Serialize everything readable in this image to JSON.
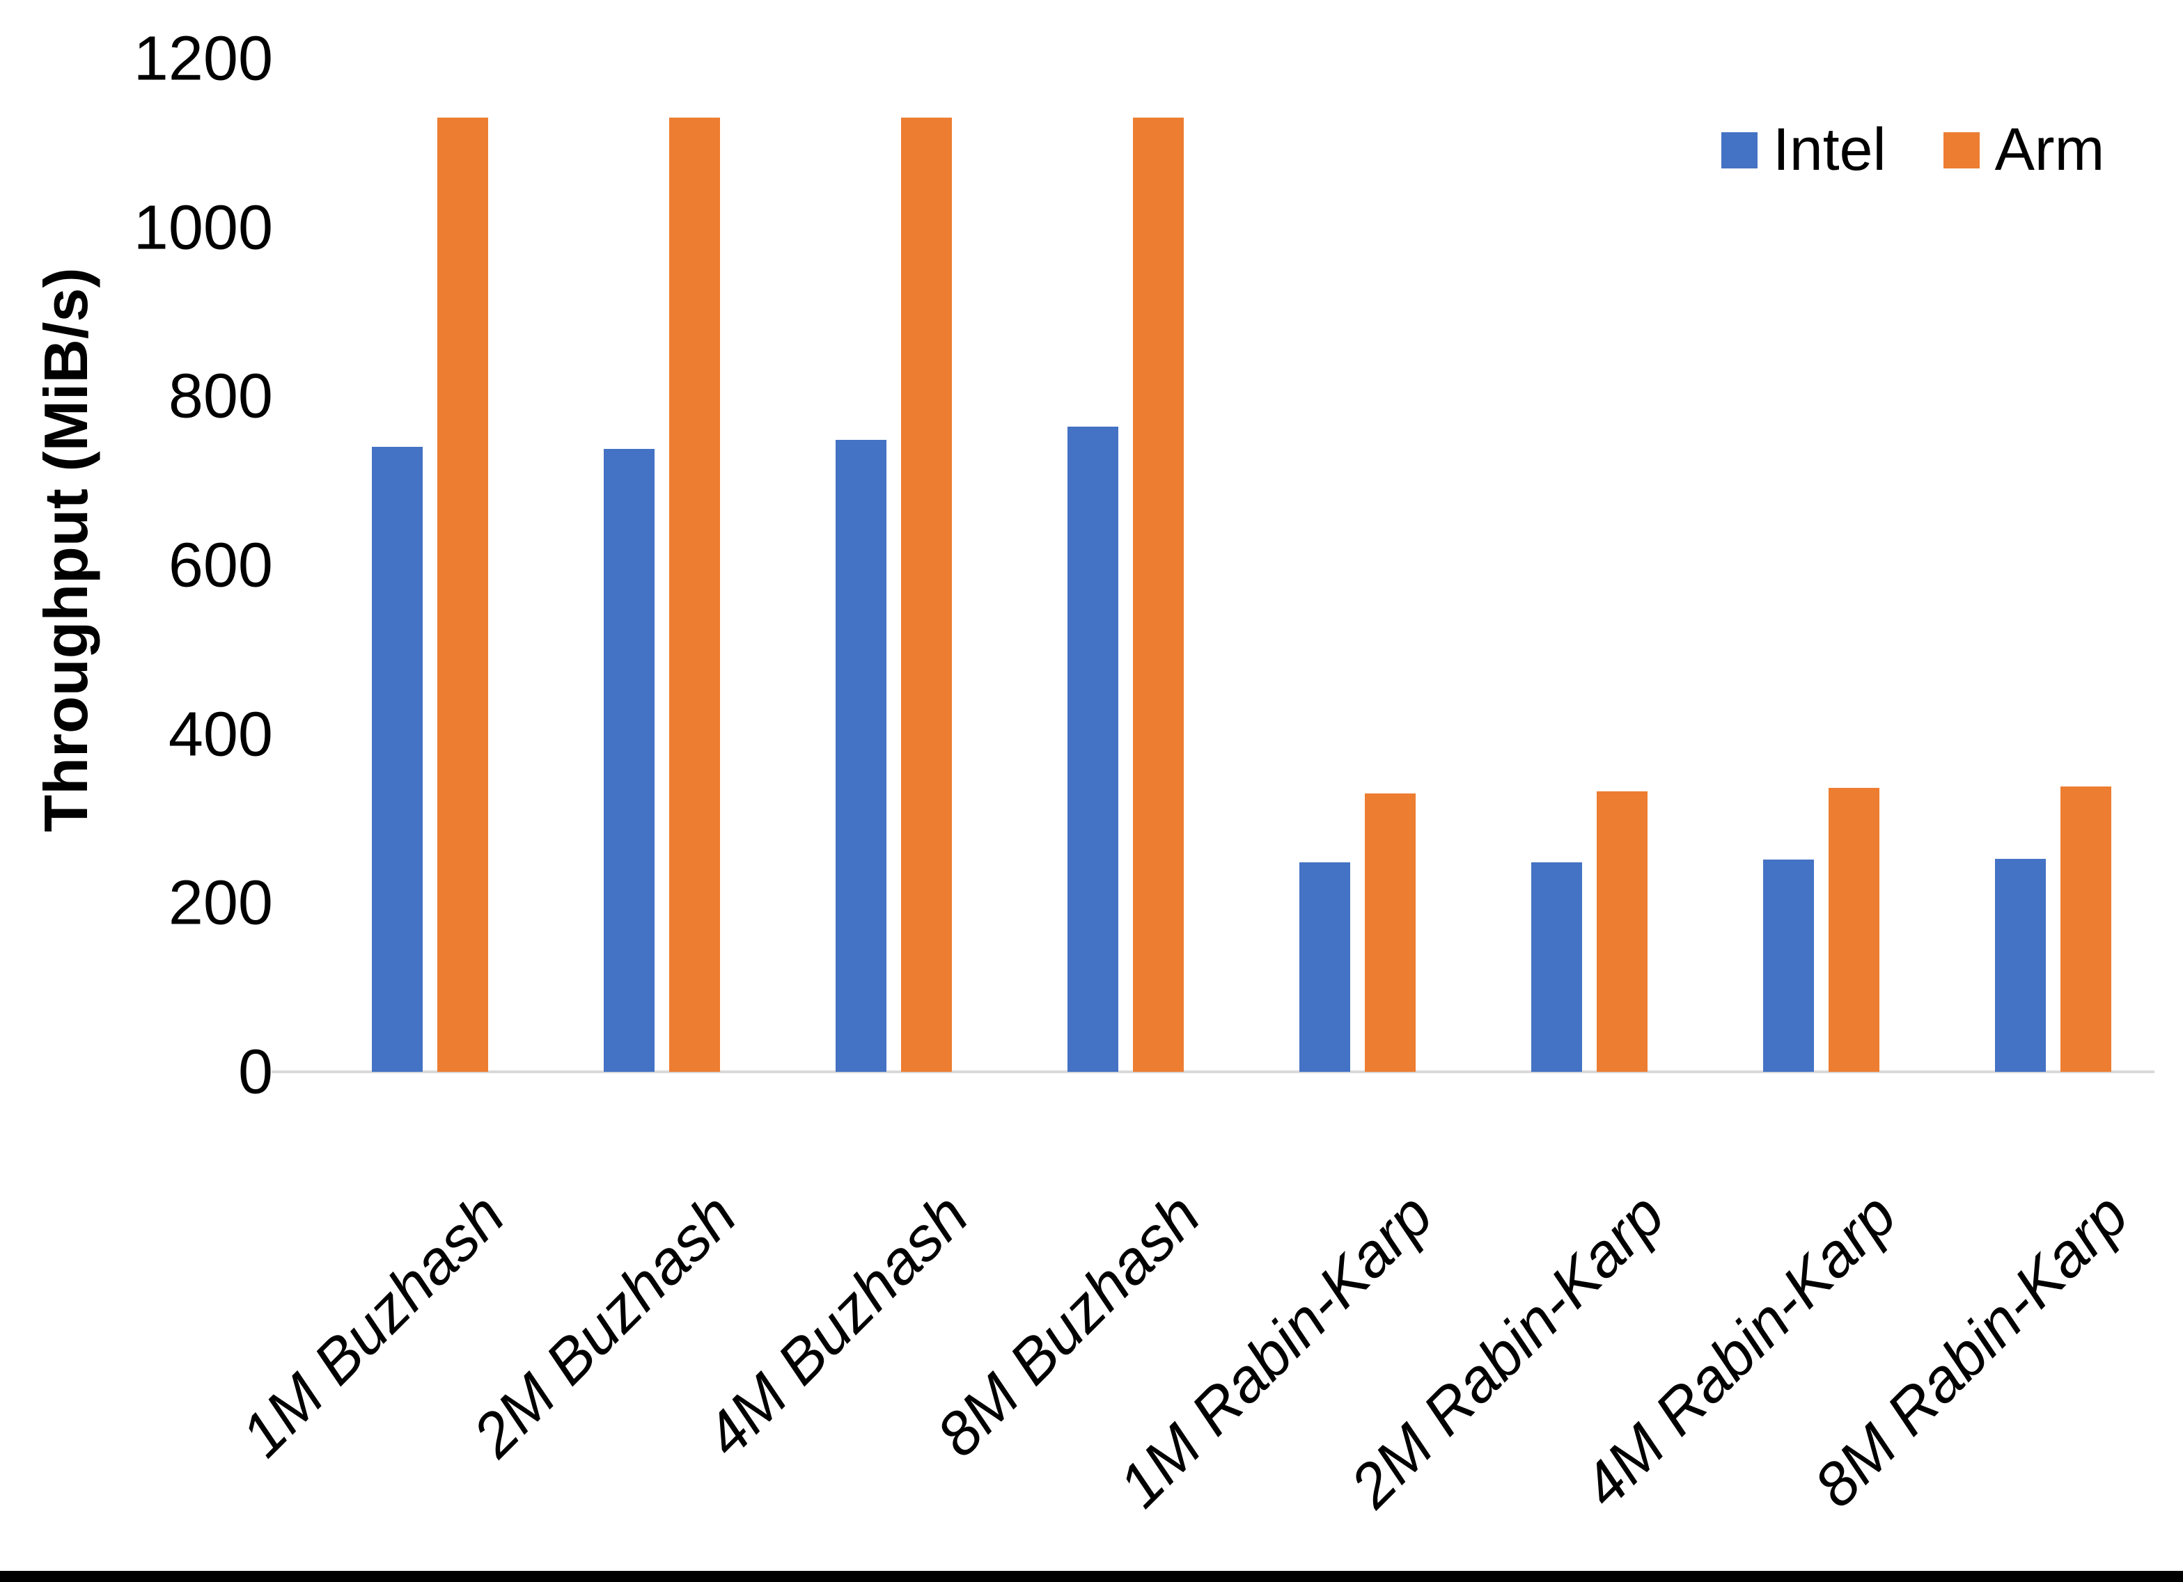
{
  "figure": {
    "background": "#ffffff",
    "bottom_edge_color": "#000000",
    "axis_line_color": "#d9d9d9"
  },
  "y_axis": {
    "title": "Throughput (MiB/s)",
    "ticks": [
      0,
      200,
      400,
      600,
      800,
      1000,
      1200
    ],
    "max": 1200
  },
  "legend": {
    "items": [
      {
        "label": "Intel",
        "color": "#4472C4"
      },
      {
        "label": "Arm",
        "color": "#ED7D31"
      }
    ],
    "position": "top-right"
  },
  "chart_data": {
    "type": "bar",
    "title": "",
    "ylabel": "Throughput (MiB/s)",
    "xlabel": "",
    "ylim": [
      0,
      1200
    ],
    "grid": false,
    "legend_position": "top-right",
    "categories": [
      "1M Buzhash",
      "2M Buzhash",
      "4M Buzhash",
      "8M Buzhash",
      "1M Rabin-Karp",
      "2M Rabin-Karp",
      "4M Rabin-Karp",
      "8M Rabin-Karp"
    ],
    "series": [
      {
        "name": "Intel",
        "color": "#4472C4",
        "values": [
          740,
          738,
          748,
          764,
          248,
          248,
          251,
          252
        ]
      },
      {
        "name": "Arm",
        "color": "#ED7D31",
        "values": [
          1130,
          1130,
          1130,
          1130,
          330,
          332,
          336,
          338
        ]
      }
    ]
  }
}
